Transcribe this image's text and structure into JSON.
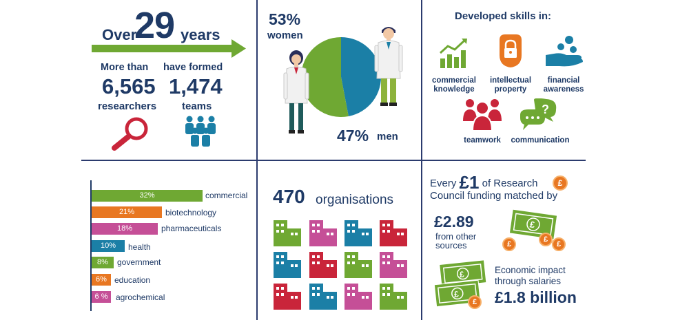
{
  "colors": {
    "navy": "#1f3a66",
    "green": "#6fa833",
    "orange": "#e87722",
    "pink": "#c54f97",
    "blue": "#1b7fa6",
    "red": "#c9253a",
    "divider": "#2b3b6e"
  },
  "years": {
    "prefix": "Over",
    "number": "29",
    "suffix": "years"
  },
  "researchers": {
    "lead": "More than",
    "number": "6,565",
    "label": "researchers"
  },
  "teams": {
    "lead": "have formed",
    "number": "1,474",
    "label": "teams"
  },
  "gender": {
    "women_pct": "53%",
    "women_label": "women",
    "men_pct": "47%",
    "men_label": "men",
    "women_share": 0.53,
    "men_share": 0.47
  },
  "skills": {
    "title": "Developed skills in:",
    "items": [
      {
        "icon": "bar-chart-icon",
        "label_line1": "commercial",
        "label_line2": "knowledge"
      },
      {
        "icon": "padlock-icon",
        "label_line1": "intellectual",
        "label_line2": "property"
      },
      {
        "icon": "hand-coins-icon",
        "label_line1": "financial",
        "label_line2": "awareness"
      },
      {
        "icon": "people-group-icon",
        "label_line1": "teamwork",
        "label_line2": ""
      },
      {
        "icon": "speech-bubbles-icon",
        "label_line1": "communication",
        "label_line2": ""
      }
    ]
  },
  "sectors": [
    {
      "pct": "32%",
      "label": "commercial",
      "value": 32,
      "color": "#6fa833"
    },
    {
      "pct": "21%",
      "label": "biotechnology",
      "value": 21,
      "color": "#e87722"
    },
    {
      "pct": "18%",
      "label": "pharmaceuticals",
      "value": 18,
      "color": "#c54f97"
    },
    {
      "pct": "10%",
      "label": "health",
      "value": 10,
      "color": "#1b7fa6"
    },
    {
      "pct": "8%",
      "label": "government",
      "value": 8,
      "color": "#6fa833"
    },
    {
      "pct": "6%",
      "label": "education",
      "value": 6,
      "color": "#e87722"
    },
    {
      "pct": "6 %",
      "label": "agrochemical",
      "value": 6,
      "color": "#c54f97"
    }
  ],
  "organisations": {
    "number": "470",
    "label": "organisations"
  },
  "funding": {
    "line1_pre": "Every",
    "line1_amount": "£1",
    "line1_post": "of Research",
    "line2": "Council funding matched by",
    "match_amount": "£2.89",
    "match_label_line1": "from other",
    "match_label_line2": "sources",
    "impact_line1": "Economic impact",
    "impact_line2": "through salaries",
    "impact_amount": "£1.8 billion",
    "pound_symbol": "£"
  }
}
